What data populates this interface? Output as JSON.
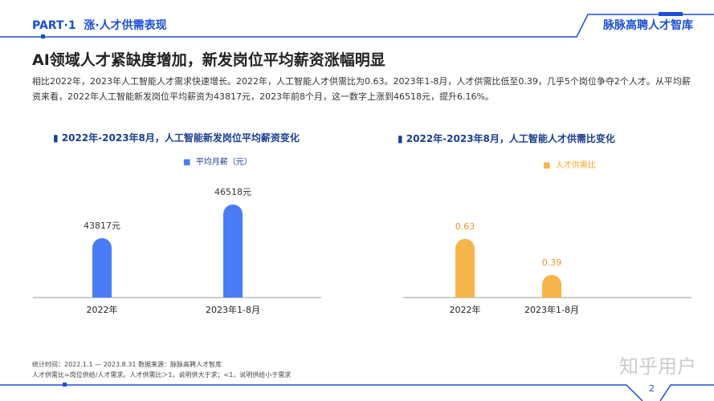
{
  "header": {
    "part": "PART·1",
    "section": "涨·人才供需表现",
    "brand": "脉脉高聘人才智库"
  },
  "title": "AI领域人才紧缺度增加，新发岗位平均薪资涨幅明显",
  "description": "相比2022年，2023年人工智能人才需求快速增长。2022年，人工智能人才供需比为0.63。2023年1-8月，人才供需比低至0.39，几乎5个岗位争夺2个人才。从平均薪资来看，2022年人工智能新发岗位平均薪资为43817元，2023年前8个月，这一数字上涨到46518元，提升6.16%。",
  "colors": {
    "accent": "#1a4fd6",
    "salary": "#4a7cf6",
    "ratio": "#f5b54a"
  },
  "chart_data": [
    {
      "type": "bar",
      "title": "2022年-2023年8月，人工智能新发岗位平均薪资变化",
      "categories": [
        "2022年",
        "2023年1-8月"
      ],
      "series": [
        {
          "name": "平均月薪（元）",
          "values": [
            43817,
            46518
          ]
        }
      ],
      "data_labels": [
        "43817元",
        "46518元"
      ],
      "legend": "top"
    },
    {
      "type": "bar",
      "title": "2022年-2023年8月，人工智能人才供需比变化",
      "categories": [
        "2022年",
        "2023年1-8月"
      ],
      "series": [
        {
          "name": "人才供需比",
          "values": [
            0.63,
            0.39
          ]
        }
      ],
      "data_labels": [
        "0.63",
        "0.39"
      ],
      "legend": "top"
    }
  ],
  "notes": [
    "统计时间：2022.1.1 — 2023.8.31  数据来源：脉脉高聘人才智库",
    "人才供需比=岗位供给/人才需求。人才供需比＞1，说明供大于求；<1，说明供给小于需求"
  ],
  "watermark": "知乎用户",
  "page": "2"
}
